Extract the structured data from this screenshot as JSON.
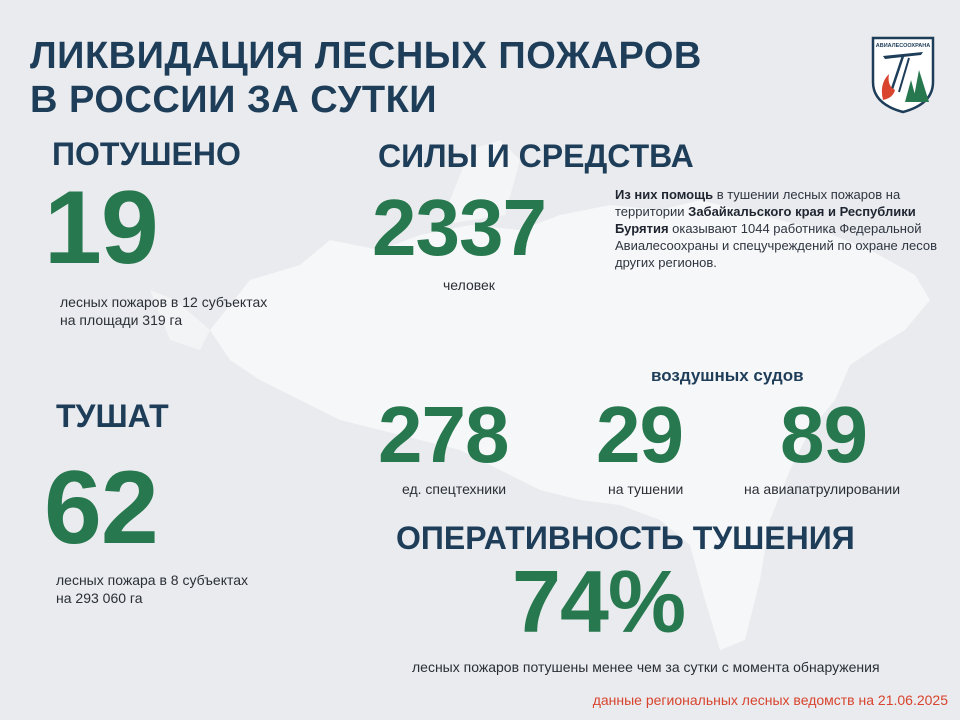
{
  "title": {
    "line1": "ЛИКВИДАЦИЯ ЛЕСНЫХ ПОЖАРОВ",
    "line2": "В РОССИИ ЗА СУТКИ"
  },
  "logo": {
    "text": "АВИАЛЕСООХРАНА",
    "icon": "avialesookhrana-emblem"
  },
  "extinguished": {
    "heading": "ПОТУШЕНО",
    "value": "19",
    "caption_line1": "лесных пожаров в 12 субъектах",
    "caption_line2": "на площади  319 га"
  },
  "active": {
    "heading": "ТУШАТ",
    "value": "62",
    "caption_line1": "лесных пожара в 8 субъектах",
    "caption_line2": "на 293 060 га"
  },
  "forces": {
    "heading": "СИЛЫ И СРЕДСТВА",
    "people_value": "2337",
    "people_label": "человек",
    "info_parts": [
      {
        "text": "Из них помощь",
        "bold": true
      },
      {
        "text": " в тушении лесных пожаров на территории ",
        "bold": false
      },
      {
        "text": "Забайкальского края и Республики Бурятия",
        "bold": true
      },
      {
        "text": " оказывают 1044 работника Федеральной Авиалесоохраны и спецучреждений по охране лесов других регионов.",
        "bold": false
      }
    ]
  },
  "equipment": {
    "value": "278",
    "label": "ед. спецтехники"
  },
  "aircraft": {
    "heading": "воздушных судов",
    "firefighting_value": "29",
    "firefighting_label": "на тушении",
    "patrol_value": "89",
    "patrol_label": "на авиапатрулировании"
  },
  "efficiency": {
    "heading": "ОПЕРАТИВНОСТЬ ТУШЕНИЯ",
    "value": "74%",
    "caption": "лесных пожаров потушены  менее чем за сутки  с момента обнаружения"
  },
  "source": "данные региональных лесных ведомств на 21.06.2025",
  "colors": {
    "navy": "#1e3d59",
    "green": "#27784e",
    "background": "#e9ebee",
    "accent_red": "#d8442e"
  }
}
